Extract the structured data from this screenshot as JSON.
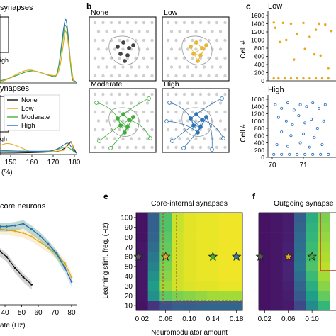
{
  "panel_labels": {
    "b": "b",
    "c": "c",
    "e": "e",
    "f": "f"
  },
  "panel_a": {
    "top_title": "synapses",
    "bottom_title": "ynapses",
    "inset_top_fragment": "igh",
    "inset_bottom_fragment": "gh",
    "x_ticks": [
      "150",
      "160",
      "170",
      "180"
    ],
    "x_unit": "(%)",
    "legend": [
      {
        "label": "None",
        "color": "#111111"
      },
      {
        "label": "Low",
        "color": "#e6a817"
      },
      {
        "label": "Moderate",
        "color": "#4caf3a"
      },
      {
        "label": "High",
        "color": "#2a6db5"
      }
    ]
  },
  "panel_b": {
    "titles": [
      "None",
      "Low",
      "Moderate",
      "High"
    ],
    "colors": [
      "#444444",
      "#e6b73c",
      "#3fae3a",
      "#2f74b5"
    ]
  },
  "panel_c": {
    "top_title": "Low",
    "bottom_title": "High",
    "ylabel": "Cell #",
    "y_ticks": [
      "0",
      "200",
      "400",
      "600",
      "800",
      "1000",
      "1200",
      "1400",
      "1600"
    ],
    "x_ticks": [
      "70",
      "71"
    ],
    "colors": {
      "low": "#e6a817",
      "high": "#2a6db5"
    }
  },
  "panel_d": {
    "title": "core neurons",
    "x_ticks": [
      "40",
      "50",
      "60",
      "70",
      "80"
    ],
    "xlabel_fragment": "ate (Hz)"
  },
  "panel_e": {
    "title": "Core-internal synapses",
    "ylabel": "Learning stim. freq. (Hz)",
    "y_ticks": [
      "100",
      "90",
      "80",
      "70",
      "60",
      "50",
      "40",
      "30",
      "20",
      "10"
    ],
    "x_ticks": [
      "0.02",
      "0.06",
      "0.10",
      "0.14",
      "0.18"
    ],
    "xlabel": "Neuromodulator amount"
  },
  "panel_f": {
    "title": "Outgoing synapse",
    "x_ticks": [
      "0.02",
      "0.06",
      "0.10"
    ]
  },
  "chart_data": [
    {
      "type": "line",
      "panel": "a-bottom",
      "x_range": [
        140,
        180
      ],
      "series": [
        {
          "name": "None",
          "color": "#111111"
        },
        {
          "name": "Low",
          "color": "#e6a817"
        },
        {
          "name": "Moderate",
          "color": "#4caf3a"
        },
        {
          "name": "High",
          "color": "#2a6db5"
        }
      ]
    },
    {
      "type": "scatter",
      "panel": "c-top",
      "title": "Low",
      "ylabel": "Cell #",
      "ylim": [
        0,
        1600
      ],
      "points": [
        [
          70.05,
          1430
        ],
        [
          70.1,
          1300
        ],
        [
          70.35,
          1420
        ],
        [
          70.6,
          1400
        ],
        [
          70.8,
          1150
        ],
        [
          71.0,
          1420
        ],
        [
          71.2,
          1080
        ],
        [
          71.4,
          1250
        ],
        [
          71.5,
          1400
        ],
        [
          71.7,
          1380
        ],
        [
          71.9,
          1220
        ],
        [
          70.45,
          1000
        ],
        [
          71.05,
          780
        ],
        [
          71.35,
          650
        ],
        [
          71.55,
          620
        ],
        [
          70.25,
          950
        ],
        [
          71.8,
          300
        ],
        [
          70.7,
          520
        ],
        [
          70.05,
          60
        ],
        [
          70.2,
          60
        ],
        [
          70.4,
          60
        ],
        [
          70.6,
          60
        ],
        [
          70.8,
          60
        ],
        [
          71.0,
          60
        ],
        [
          71.2,
          60
        ],
        [
          71.4,
          60
        ],
        [
          71.6,
          60
        ],
        [
          71.8,
          60
        ]
      ]
    },
    {
      "type": "scatter",
      "panel": "c-bottom",
      "title": "High",
      "ylabel": "Cell #",
      "ylim": [
        0,
        1600
      ],
      "points": [
        [
          70.1,
          1450
        ],
        [
          70.3,
          1350
        ],
        [
          70.5,
          1500
        ],
        [
          70.7,
          1300
        ],
        [
          70.9,
          1450
        ],
        [
          71.1,
          1400
        ],
        [
          71.3,
          1500
        ],
        [
          71.5,
          1350
        ],
        [
          71.7,
          1450
        ],
        [
          70.2,
          1100
        ],
        [
          70.45,
          1000
        ],
        [
          70.65,
          900
        ],
        [
          70.85,
          1150
        ],
        [
          71.05,
          950
        ],
        [
          71.25,
          1050
        ],
        [
          71.45,
          800
        ],
        [
          71.65,
          1000
        ],
        [
          70.3,
          700
        ],
        [
          70.6,
          600
        ],
        [
          71.0,
          650
        ],
        [
          71.35,
          550
        ],
        [
          70.15,
          350
        ],
        [
          70.5,
          300
        ],
        [
          70.9,
          400
        ],
        [
          71.2,
          280
        ],
        [
          71.6,
          350
        ],
        [
          70.05,
          80
        ],
        [
          70.3,
          80
        ],
        [
          70.55,
          80
        ],
        [
          70.8,
          80
        ],
        [
          71.05,
          80
        ],
        [
          71.3,
          80
        ],
        [
          71.55,
          80
        ],
        [
          71.8,
          80
        ]
      ]
    },
    {
      "type": "line",
      "panel": "d",
      "title": "core neurons",
      "x_range": [
        37,
        83
      ],
      "series": [
        {
          "color": "#111111",
          "x": [
            37,
            41,
            46,
            51,
            56
          ],
          "y": [
            0.58,
            0.52,
            0.4,
            0.3,
            0.22
          ]
        },
        {
          "color": "#e6a817",
          "x": [
            37,
            41,
            46,
            51,
            56,
            61,
            66,
            71,
            76,
            80
          ],
          "y": [
            0.82,
            0.81,
            0.8,
            0.78,
            0.74,
            0.68,
            0.62,
            0.55,
            0.45,
            0.3
          ]
        },
        {
          "color": "#4caf3a",
          "x": [
            37,
            41,
            46,
            51,
            56,
            61,
            66,
            71,
            76
          ],
          "y": [
            0.85,
            0.85,
            0.86,
            0.88,
            0.82,
            0.75,
            0.66,
            0.55,
            0.4
          ]
        },
        {
          "color": "#2a6db5",
          "x": [
            37,
            41,
            46,
            51,
            56,
            61,
            66,
            71,
            76,
            80
          ],
          "y": [
            0.85,
            0.85,
            0.86,
            0.88,
            0.82,
            0.75,
            0.66,
            0.56,
            0.4,
            0.25
          ]
        }
      ]
    },
    {
      "type": "heatmap",
      "panel": "e",
      "title": "Core-internal synapses",
      "xlabel": "Neuromodulator amount",
      "ylabel": "Learning stim. freq. (Hz)",
      "x": [
        0.02,
        0.04,
        0.06,
        0.08,
        0.1,
        0.12,
        0.14,
        0.16,
        0.18
      ],
      "y": [
        100,
        90,
        80,
        70,
        60,
        50,
        40,
        30,
        20,
        10
      ],
      "values": [
        [
          0.05,
          0.3,
          0.72,
          0.92,
          0.96,
          0.97,
          0.97,
          0.98,
          0.98
        ],
        [
          0.05,
          0.3,
          0.72,
          0.92,
          0.96,
          0.97,
          0.97,
          0.98,
          0.98
        ],
        [
          0.05,
          0.32,
          0.74,
          0.93,
          0.96,
          0.97,
          0.97,
          0.98,
          0.98
        ],
        [
          0.06,
          0.35,
          0.76,
          0.93,
          0.96,
          0.97,
          0.97,
          0.98,
          0.98
        ],
        [
          0.06,
          0.4,
          0.78,
          0.93,
          0.96,
          0.97,
          0.97,
          0.98,
          0.98
        ],
        [
          0.06,
          0.45,
          0.8,
          0.93,
          0.96,
          0.97,
          0.97,
          0.98,
          0.98
        ],
        [
          0.06,
          0.5,
          0.82,
          0.93,
          0.96,
          0.97,
          0.97,
          0.98,
          0.98
        ],
        [
          0.06,
          0.55,
          0.85,
          0.93,
          0.95,
          0.96,
          0.96,
          0.97,
          0.97
        ],
        [
          0.06,
          0.5,
          0.75,
          0.8,
          0.82,
          0.84,
          0.86,
          0.86,
          0.86
        ],
        [
          0.05,
          0.15,
          0.25,
          0.3,
          0.3,
          0.32,
          0.33,
          0.33,
          0.33
        ]
      ],
      "stars": [
        [
          0.02,
          60
        ],
        [
          0.06,
          60
        ],
        [
          0.14,
          60
        ],
        [
          0.18,
          60
        ]
      ]
    },
    {
      "type": "heatmap",
      "panel": "f",
      "title": "Outgoing synapse",
      "x": [
        0.02,
        0.04,
        0.06,
        0.08,
        0.1,
        0.12
      ],
      "y": [
        100,
        90,
        80,
        70,
        60,
        50,
        40,
        30,
        20,
        10
      ],
      "values": [
        [
          0.05,
          0.06,
          0.08,
          0.3,
          0.62,
          0.8
        ],
        [
          0.05,
          0.06,
          0.08,
          0.32,
          0.64,
          0.82
        ],
        [
          0.05,
          0.06,
          0.08,
          0.34,
          0.66,
          0.84
        ],
        [
          0.05,
          0.06,
          0.09,
          0.36,
          0.68,
          0.86
        ],
        [
          0.05,
          0.06,
          0.09,
          0.38,
          0.7,
          0.88
        ],
        [
          0.05,
          0.06,
          0.1,
          0.4,
          0.72,
          0.9
        ],
        [
          0.05,
          0.06,
          0.1,
          0.36,
          0.68,
          0.86
        ],
        [
          0.05,
          0.06,
          0.09,
          0.32,
          0.62,
          0.82
        ],
        [
          0.05,
          0.06,
          0.08,
          0.28,
          0.56,
          0.76
        ],
        [
          0.05,
          0.06,
          0.07,
          0.22,
          0.48,
          0.66
        ]
      ],
      "stars": [
        [
          0.02,
          60
        ],
        [
          0.06,
          60
        ],
        [
          0.1,
          60
        ]
      ]
    }
  ]
}
